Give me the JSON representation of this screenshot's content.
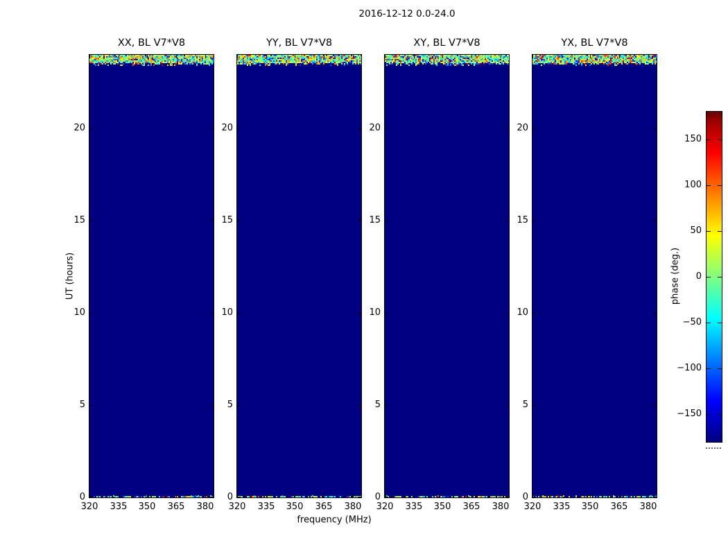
{
  "figure": {
    "title": "2016-12-12 0.0-24.0",
    "xlabel": "frequency (MHz)",
    "ylabel": "UT (hours)",
    "colorbar_label": "phase (deg.)"
  },
  "chart_data": {
    "type": "heatmap",
    "title": "2016-12-12 0.0-24.0",
    "xlabel": "frequency (MHz)",
    "ylabel": "UT (hours)",
    "xlim": [
      320,
      384
    ],
    "ylim": [
      0,
      24
    ],
    "xticks": [
      320,
      335,
      350,
      365,
      380
    ],
    "xtick_labels": [
      "320",
      "335",
      "350",
      "365",
      "380"
    ],
    "yticks": [
      0,
      5,
      10,
      15,
      20
    ],
    "ytick_labels": [
      "0",
      "5",
      "10",
      "15",
      "20"
    ],
    "panels": [
      {
        "title": "XX, BL V7*V8"
      },
      {
        "title": "YY, BL V7*V8"
      },
      {
        "title": "XY, BL V7*V8"
      },
      {
        "title": "YX, BL V7*V8"
      }
    ],
    "colorbar": {
      "label": "phase (deg.)",
      "colormap": "jet",
      "vmin": -180,
      "vmax": 180,
      "ticks": [
        150,
        100,
        50,
        0,
        -50,
        -100,
        -150
      ],
      "tick_labels": [
        "150",
        "100",
        "50",
        "0",
        "−50",
        "−100",
        "−150"
      ]
    },
    "grid": false,
    "legend_position": "none",
    "content_description": {
      "background_color": "#000080",
      "background_phase_deg": -180,
      "noise_bands": [
        {
          "ut_from": 23.4,
          "ut_to": 24.0,
          "description": "random phase speckle spanning full −180…180 range across all frequencies"
        },
        {
          "ut_from": 0.0,
          "ut_to": 0.1,
          "description": "thin random phase speckle line across all frequencies"
        }
      ]
    }
  }
}
